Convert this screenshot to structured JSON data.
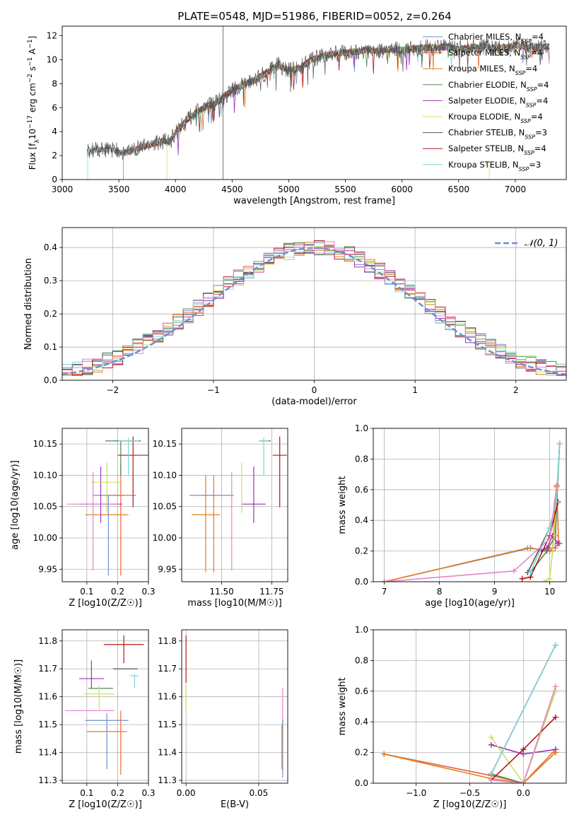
{
  "title": "PLATE=0548, MJD=51986, FIBERID=0052, z=0.264",
  "colors": {
    "chabrier_miles": "#6f8fd6",
    "salpeter_miles": "#f26a3c",
    "kroupa_miles": "#e0801f",
    "chabrier_elodie": "#4c8c4c",
    "salpeter_elodie": "#9a35b5",
    "kroupa_elodie": "#cde05a",
    "chabrier_stelib": "#555555",
    "salpeter_stelib": "#b01818",
    "kroupa_stelib": "#7fd6d6",
    "pink": "#e685c6"
  },
  "chart_data": [
    {
      "id": "spectrum",
      "type": "line",
      "xlabel": "wavelength [Angstrom, rest frame]",
      "ylabel": "Flux [f_λ 10^-17 erg cm^-2 s^-1 A^-1]",
      "xlim": [
        3000,
        7450
      ],
      "ylim": [
        0,
        12.8
      ],
      "xticks": [
        3000,
        3500,
        4000,
        4500,
        5000,
        5500,
        6000,
        6500,
        7000
      ],
      "yticks": [
        0,
        2,
        4,
        6,
        8,
        10,
        12
      ],
      "grid": false,
      "legend_position": "right",
      "legend": [
        "Chabrier MILES, N_SSP=4",
        "Salpeter MILES, N_SSP=4",
        "Kroupa MILES, N_SSP=4",
        "Chabrier ELODIE, N_SSP=4",
        "Salpeter ELODIE, N_SSP=4",
        "Kroupa ELODIE, N_SSP=4",
        "Chabrier STELIB, N_SSP=3",
        "Salpeter STELIB, N_SSP=4",
        "Kroupa STELIB, N_SSP=3"
      ],
      "continuum": {
        "x": [
          3230,
          3300,
          3400,
          3500,
          3550,
          3600,
          3700,
          3800,
          3900,
          3950,
          4000,
          4100,
          4200,
          4300,
          4400,
          4500,
          4600,
          4700,
          4800,
          4900,
          5000,
          5100,
          5200,
          5300,
          5400,
          5500,
          5600,
          5700,
          5800,
          5900,
          6000,
          6100,
          6200,
          6300,
          6400,
          6500,
          6600,
          6700,
          6800,
          6900,
          7000,
          7100,
          7200,
          7300
        ],
        "y": [
          2.3,
          2.5,
          2.5,
          2.4,
          2.2,
          2.4,
          2.7,
          3.0,
          3.2,
          3.1,
          3.9,
          5.0,
          5.7,
          6.2,
          6.6,
          7.5,
          7.9,
          8.3,
          8.9,
          9.6,
          9.1,
          9.3,
          10.0,
          10.3,
          10.5,
          10.6,
          10.7,
          10.8,
          10.7,
          10.9,
          10.8,
          10.9,
          11.0,
          11.0,
          11.1,
          10.9,
          11.0,
          11.1,
          11.0,
          11.0,
          11.2,
          11.1,
          11.0,
          11.1
        ]
      }
    },
    {
      "id": "residuals",
      "type": "line",
      "xlabel": "(data-model)/error",
      "ylabel": "Normed distribution",
      "xlim": [
        -2.5,
        2.5
      ],
      "ylim": [
        0,
        0.46
      ],
      "xticks": [
        -2,
        -1,
        0,
        1,
        2
      ],
      "yticks": [
        0.0,
        0.1,
        0.2,
        0.3,
        0.4
      ],
      "grid": true,
      "legend": [
        "N(0,1)"
      ],
      "legend_position": "top-right",
      "bin_width": 0.1
    },
    {
      "id": "age_vs_Z",
      "type": "scatter",
      "xlabel": "Z [log10(Z/Z☉)]",
      "ylabel": "age [log10(age/yr)]",
      "xlim": [
        0.02,
        0.3
      ],
      "ylim": [
        9.93,
        10.175
      ],
      "xticks": [
        0.1,
        0.2,
        0.3
      ],
      "yticks": [
        9.95,
        10.0,
        10.05,
        10.1,
        10.15
      ],
      "grid": true,
      "points": [
        {
          "c": "chabrier_miles",
          "x": 0.17,
          "xe": 0.05,
          "y": 10.068,
          "ylo": 9.94,
          "yhi": 10.068
        },
        {
          "c": "salpeter_miles",
          "x": 0.21,
          "xe": 0.05,
          "y": 10.068,
          "ylo": 9.94,
          "yhi": 10.12
        },
        {
          "c": "kroupa_miles",
          "x": 0.165,
          "xe": 0.07,
          "y": 10.037,
          "ylo": 10.037,
          "yhi": 10.037
        },
        {
          "c": "chabrier_elodie",
          "x": 0.21,
          "xe": 0.05,
          "y": 10.155,
          "ylo": 10.1,
          "yhi": 10.155
        },
        {
          "c": "salpeter_elodie",
          "x": 0.145,
          "xe": 0.07,
          "y": 10.054,
          "ylo": 10.024,
          "yhi": 10.114
        },
        {
          "c": "kroupa_elodie",
          "x": 0.165,
          "xe": 0.05,
          "y": 10.089,
          "ylo": 10.04,
          "yhi": 10.12
        },
        {
          "c": "chabrier_stelib",
          "x": 0.235,
          "xe": 0.04,
          "y": 10.155,
          "ylo": 10.155,
          "yhi": 10.155
        },
        {
          "c": "salpeter_stelib",
          "x": 0.25,
          "xe": 0.05,
          "y": 10.132,
          "ylo": 10.049,
          "yhi": 10.162
        },
        {
          "c": "kroupa_stelib",
          "x": 0.235,
          "xe": 0.035,
          "y": 10.155,
          "ylo": 10.1,
          "yhi": 10.16
        },
        {
          "c": "pink",
          "x": 0.12,
          "xe": 0.085,
          "y": 10.054,
          "ylo": 9.948,
          "yhi": 10.105
        }
      ]
    },
    {
      "id": "age_vs_mass",
      "type": "scatter",
      "xlabel": "mass [log10(M/M☉)]",
      "ylabel": "",
      "xlim": [
        11.3,
        11.83
      ],
      "ylim": [
        9.93,
        10.175
      ],
      "xticks": [
        11.5,
        11.75
      ],
      "yticks": [
        9.95,
        10.0,
        10.05,
        10.1,
        10.15
      ],
      "grid": true,
      "points": [
        {
          "c": "chabrier_miles",
          "x": 11.45,
          "xe": 0.11,
          "y": 10.068,
          "ylo": 10.068,
          "yhi": 10.068
        },
        {
          "c": "salpeter_miles",
          "x": 11.46,
          "xe": 0.0,
          "y": 10.068,
          "ylo": 9.945,
          "yhi": 10.1
        },
        {
          "c": "kroupa_miles",
          "x": 11.42,
          "xe": 0.07,
          "y": 10.037,
          "ylo": 9.945,
          "yhi": 10.1
        },
        {
          "c": "chabrier_elodie",
          "x": 11.71,
          "xe": 0.02,
          "y": 10.155,
          "ylo": 10.155,
          "yhi": 10.155
        },
        {
          "c": "salpeter_elodie",
          "x": 11.66,
          "xe": 0.06,
          "y": 10.054,
          "ylo": 10.024,
          "yhi": 10.114
        },
        {
          "c": "kroupa_elodie",
          "x": 11.6,
          "xe": 0.0,
          "y": 10.089,
          "ylo": 10.04,
          "yhi": 10.12
        },
        {
          "c": "chabrier_stelib",
          "x": 11.72,
          "xe": 0.025,
          "y": 10.155,
          "ylo": 10.155,
          "yhi": 10.155
        },
        {
          "c": "salpeter_stelib",
          "x": 11.79,
          "xe": 0.035,
          "y": 10.132,
          "ylo": 10.049,
          "yhi": 10.162
        },
        {
          "c": "kroupa_stelib",
          "x": 11.71,
          "xe": 0.025,
          "y": 10.155,
          "ylo": 10.1,
          "yhi": 10.16
        },
        {
          "c": "pink",
          "x": 11.55,
          "xe": 0.0,
          "y": 10.054,
          "ylo": 9.948,
          "yhi": 10.105
        }
      ]
    },
    {
      "id": "weight_vs_age",
      "type": "line",
      "xlabel": "age [log10(age/yr)]",
      "ylabel": "mass weight",
      "xlim": [
        6.8,
        10.3
      ],
      "ylim": [
        0,
        1.0
      ],
      "xticks": [
        7,
        8,
        9,
        10
      ],
      "yticks": [
        0.0,
        0.2,
        0.4,
        0.6,
        0.8,
        1.0
      ],
      "grid": true,
      "series": [
        {
          "c": "chabrier_miles",
          "x": [
            7.0,
            9.65,
            10.0,
            10.18
          ],
          "y": [
            0.0,
            0.22,
            0.2,
            0.25
          ]
        },
        {
          "c": "salpeter_miles",
          "x": [
            9.98,
            10.1,
            10.13,
            10.16
          ],
          "y": [
            0.22,
            0.22,
            0.62,
            0.25
          ]
        },
        {
          "c": "kroupa_miles",
          "x": [
            7.0,
            9.6,
            10.05,
            10.12
          ],
          "y": [
            0.0,
            0.22,
            0.2,
            0.62
          ]
        },
        {
          "c": "chabrier_elodie",
          "x": [
            9.65,
            9.95,
            10.1,
            10.18
          ],
          "y": [
            0.06,
            0.2,
            0.3,
            0.9
          ]
        },
        {
          "c": "salpeter_elodie",
          "x": [
            9.85,
            9.95,
            10.05,
            10.15
          ],
          "y": [
            0.2,
            0.22,
            0.3,
            0.25
          ]
        },
        {
          "c": "kroupa_elodie",
          "x": [
            9.9,
            10.0,
            10.08,
            10.13
          ],
          "y": [
            0.0,
            0.02,
            0.3,
            0.6
          ]
        },
        {
          "c": "chabrier_stelib",
          "x": [
            9.6,
            10.0,
            10.12,
            10.18
          ],
          "y": [
            0.06,
            0.35,
            0.52,
            0.9
          ]
        },
        {
          "c": "salpeter_stelib",
          "x": [
            9.5,
            9.65,
            10.0,
            10.15
          ],
          "y": [
            0.02,
            0.03,
            0.3,
            0.52
          ]
        },
        {
          "c": "kroupa_stelib",
          "x": [
            9.65,
            10.0,
            10.12,
            10.18
          ],
          "y": [
            0.06,
            0.35,
            0.52,
            0.9
          ]
        },
        {
          "c": "pink",
          "x": [
            7.0,
            9.35,
            10.0,
            10.13
          ],
          "y": [
            0.0,
            0.07,
            0.28,
            0.63
          ]
        }
      ]
    },
    {
      "id": "mass_vs_Z",
      "type": "scatter",
      "xlabel": "Z [log10(Z/Z☉)]",
      "ylabel": "mass [log10(M/M☉)]",
      "xlim": [
        0.02,
        0.3
      ],
      "ylim": [
        11.29,
        11.84
      ],
      "xticks": [
        0.1,
        0.2,
        0.3
      ],
      "yticks": [
        11.3,
        11.4,
        11.5,
        11.6,
        11.7,
        11.8
      ],
      "grid": true,
      "points": [
        {
          "c": "chabrier_miles",
          "x": 0.165,
          "xe": 0.07,
          "y": 11.515,
          "ylo": 11.34,
          "yhi": 11.54
        },
        {
          "c": "salpeter_miles",
          "x": 0.21,
          "xe": 0.0,
          "y": 11.515,
          "ylo": 11.32,
          "yhi": 11.55
        },
        {
          "c": "kroupa_miles",
          "x": 0.165,
          "xe": 0.065,
          "y": 11.475,
          "ylo": 11.475,
          "yhi": 11.475
        },
        {
          "c": "chabrier_elodie",
          "x": 0.145,
          "xe": 0.04,
          "y": 11.63,
          "ylo": 11.63,
          "yhi": 11.63
        },
        {
          "c": "salpeter_elodie",
          "x": 0.115,
          "xe": 0.04,
          "y": 11.665,
          "ylo": 11.63,
          "yhi": 11.73
        },
        {
          "c": "kroupa_elodie",
          "x": 0.14,
          "xe": 0.05,
          "y": 11.61,
          "ylo": 11.55,
          "yhi": 11.64
        },
        {
          "c": "chabrier_stelib",
          "x": 0.225,
          "xe": 0.04,
          "y": 11.7,
          "ylo": 11.7,
          "yhi": 11.7
        },
        {
          "c": "salpeter_stelib",
          "x": 0.22,
          "xe": 0.065,
          "y": 11.787,
          "ylo": 11.72,
          "yhi": 11.82
        },
        {
          "c": "kroupa_stelib",
          "x": 0.255,
          "xe": 0.015,
          "y": 11.675,
          "ylo": 11.63,
          "yhi": 11.68
        },
        {
          "c": "pink",
          "x": 0.11,
          "xe": 0.08,
          "y": 11.55,
          "ylo": 11.55,
          "yhi": 11.55
        }
      ]
    },
    {
      "id": "mass_vs_ebv",
      "type": "scatter",
      "xlabel": "E(B-V)",
      "ylabel": "",
      "xlim": [
        -0.003,
        0.07
      ],
      "ylim": [
        11.29,
        11.84
      ],
      "xticks": [
        0.0,
        0.05
      ],
      "yticks": [
        11.3,
        11.4,
        11.5,
        11.6,
        11.7,
        11.8
      ],
      "grid": true,
      "points": [
        {
          "c": "salpeter_stelib",
          "x": 0.0,
          "xe": 0.0,
          "y": 11.74,
          "ylo": 11.65,
          "yhi": 11.82
        },
        {
          "c": "kroupa_elodie",
          "x": 0.0,
          "xe": 0.0,
          "y": 11.6,
          "ylo": 11.55,
          "yhi": 11.64
        },
        {
          "c": "pink",
          "x": 0.0665,
          "xe": 0.0,
          "y": 11.55,
          "ylo": 11.44,
          "yhi": 11.63
        },
        {
          "c": "chabrier_miles",
          "x": 0.0665,
          "xe": 0.0,
          "y": 11.42,
          "ylo": 11.31,
          "yhi": 11.52
        },
        {
          "c": "kroupa_miles",
          "x": 0.066,
          "xe": 0.0,
          "y": 11.4,
          "ylo": 11.34,
          "yhi": 11.5
        }
      ]
    },
    {
      "id": "weight_vs_Z",
      "type": "line",
      "xlabel": "Z [log10(Z/Z☉)]",
      "ylabel": "mass weight",
      "xlim": [
        -1.4,
        0.4
      ],
      "ylim": [
        0,
        1.0
      ],
      "xticks": [
        -1.0,
        -0.5,
        0.0
      ],
      "yticks": [
        0.0,
        0.2,
        0.4,
        0.6,
        0.8,
        1.0
      ],
      "grid": true,
      "series": [
        {
          "c": "chabrier_miles",
          "x": [
            -1.3,
            -0.3,
            0.0,
            0.3
          ],
          "y": [
            0.19,
            0.05,
            0.0,
            0.2
          ]
        },
        {
          "c": "salpeter_miles",
          "x": [
            -1.3,
            -0.3,
            0.0,
            0.3
          ],
          "y": [
            0.19,
            0.05,
            0.0,
            0.22
          ]
        },
        {
          "c": "kroupa_miles",
          "x": [
            -1.3,
            -0.3,
            0.0,
            0.3
          ],
          "y": [
            0.19,
            0.03,
            0.0,
            0.2
          ]
        },
        {
          "c": "chabrier_elodie",
          "x": [
            -0.3,
            0.0,
            0.3
          ],
          "y": [
            0.06,
            0.0,
            0.6
          ]
        },
        {
          "c": "salpeter_elodie",
          "x": [
            -0.3,
            0.0,
            0.3
          ],
          "y": [
            0.25,
            0.19,
            0.22
          ]
        },
        {
          "c": "kroupa_elodie",
          "x": [
            -0.3,
            0.0,
            0.3
          ],
          "y": [
            0.3,
            0.0,
            0.6
          ]
        },
        {
          "c": "chabrier_stelib",
          "x": [
            -0.3,
            0.3
          ],
          "y": [
            0.06,
            0.9
          ]
        },
        {
          "c": "salpeter_stelib",
          "x": [
            -0.3,
            0.0,
            0.3
          ],
          "y": [
            0.02,
            0.22,
            0.43
          ]
        },
        {
          "c": "kroupa_stelib",
          "x": [
            -0.3,
            0.3
          ],
          "y": [
            0.06,
            0.9
          ]
        },
        {
          "c": "pink",
          "x": [
            -0.3,
            0.0,
            0.3
          ],
          "y": [
            0.02,
            0.0,
            0.63
          ]
        }
      ]
    }
  ]
}
